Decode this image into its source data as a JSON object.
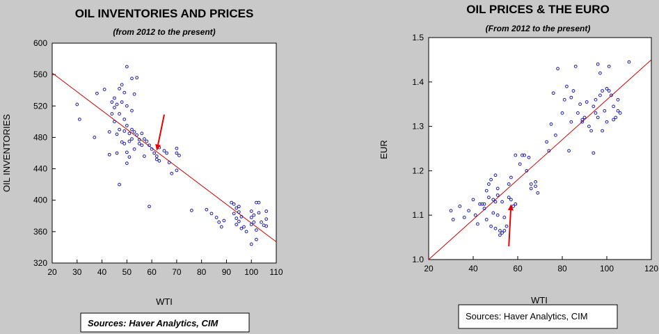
{
  "chart_data": [
    {
      "type": "scatter",
      "title": "OIL INVENTORIES AND PRICES",
      "subtitle": "(from 2012 to the present)",
      "xlabel": "WTI",
      "ylabel": "OIL INVENTORIES",
      "xlim": [
        20,
        110
      ],
      "ylim": [
        320,
        600
      ],
      "xticks": [
        20,
        30,
        40,
        50,
        60,
        70,
        80,
        90,
        100,
        110
      ],
      "yticks": [
        320,
        360,
        400,
        440,
        480,
        520,
        560,
        600
      ],
      "grid": false,
      "source": "Sources:  Haver Analytics, CIM",
      "point_color": "#1a1aa8",
      "line_color": "#cc0000",
      "arrow_color": "#e60000",
      "trendline": [
        [
          20,
          562
        ],
        [
          110,
          347
        ]
      ],
      "arrow": {
        "from": [
          65,
          509
        ],
        "to": [
          62,
          463
        ]
      },
      "points": [
        [
          30,
          522
        ],
        [
          31,
          503
        ],
        [
          37,
          480
        ],
        [
          38,
          536
        ],
        [
          41,
          541
        ],
        [
          43,
          487
        ],
        [
          43,
          458
        ],
        [
          44,
          510
        ],
        [
          44,
          525
        ],
        [
          45,
          530
        ],
        [
          45,
          518
        ],
        [
          45,
          500
        ],
        [
          46,
          522
        ],
        [
          46,
          484
        ],
        [
          46,
          460
        ],
        [
          47,
          542
        ],
        [
          47,
          510
        ],
        [
          47,
          490
        ],
        [
          48,
          547
        ],
        [
          48,
          525
        ],
        [
          48,
          474
        ],
        [
          49,
          537
        ],
        [
          49,
          503
        ],
        [
          49,
          488
        ],
        [
          49,
          472
        ],
        [
          50,
          570
        ],
        [
          50,
          520
        ],
        [
          50,
          495
        ],
        [
          50,
          461
        ],
        [
          50,
          447
        ],
        [
          51,
          485
        ],
        [
          51,
          475
        ],
        [
          51,
          455
        ],
        [
          52,
          555
        ],
        [
          52,
          514
        ],
        [
          52,
          490
        ],
        [
          52,
          478
        ],
        [
          53,
          535
        ],
        [
          53,
          487
        ],
        [
          53,
          465
        ],
        [
          54,
          556
        ],
        [
          54,
          483
        ],
        [
          55,
          477
        ],
        [
          55,
          472
        ],
        [
          56,
          485
        ],
        [
          56,
          470
        ],
        [
          57,
          456
        ],
        [
          57,
          478
        ],
        [
          58,
          475
        ],
        [
          59,
          470
        ],
        [
          59,
          392
        ],
        [
          60,
          465
        ],
        [
          61,
          460
        ],
        [
          62,
          456
        ],
        [
          62,
          452
        ],
        [
          63,
          467
        ],
        [
          63,
          450
        ],
        [
          65,
          463
        ],
        [
          66,
          460
        ],
        [
          67,
          448
        ],
        [
          68,
          434
        ],
        [
          70,
          466
        ],
        [
          70,
          460
        ],
        [
          70,
          438
        ],
        [
          71,
          457
        ],
        [
          47,
          420
        ],
        [
          76,
          387
        ],
        [
          82,
          388
        ],
        [
          84,
          383
        ],
        [
          86,
          378
        ],
        [
          87,
          372
        ],
        [
          88,
          366
        ],
        [
          89,
          374
        ],
        [
          92,
          397
        ],
        [
          93,
          395
        ],
        [
          93,
          383
        ],
        [
          94,
          390
        ],
        [
          94,
          377
        ],
        [
          94,
          369
        ],
        [
          95,
          392
        ],
        [
          95,
          385
        ],
        [
          95,
          373
        ],
        [
          96,
          379
        ],
        [
          96,
          364
        ],
        [
          97,
          366
        ],
        [
          98,
          360
        ],
        [
          100,
          386
        ],
        [
          100,
          378
        ],
        [
          100,
          369
        ],
        [
          100,
          344
        ],
        [
          101,
          381
        ],
        [
          101,
          372
        ],
        [
          102,
          397
        ],
        [
          102,
          362
        ],
        [
          102,
          350
        ],
        [
          103,
          397
        ],
        [
          103,
          384
        ],
        [
          104,
          372
        ],
        [
          105,
          368
        ],
        [
          106,
          386
        ],
        [
          106,
          376
        ],
        [
          106,
          367
        ]
      ]
    },
    {
      "type": "scatter",
      "title": "OIL PRICES & THE EURO",
      "subtitle": "(From 2012 to the present)",
      "xlabel": "WTI",
      "ylabel": "EUR",
      "xlim": [
        20,
        120
      ],
      "ylim": [
        1.0,
        1.5
      ],
      "xticks": [
        20,
        40,
        60,
        80,
        100,
        120
      ],
      "yticks": [
        1.0,
        1.1,
        1.2,
        1.3,
        1.4,
        1.5
      ],
      "grid": false,
      "source": "Sources:  Haver Analytics, CIM",
      "point_color": "#1a1aa8",
      "line_color": "#cc0000",
      "arrow_color": "#e60000",
      "trendline": [
        [
          20,
          1.0
        ],
        [
          120,
          1.45
        ]
      ],
      "arrow": {
        "from": [
          56,
          1.03
        ],
        "to": [
          57,
          1.125
        ]
      },
      "points": [
        [
          30,
          1.11
        ],
        [
          31,
          1.09
        ],
        [
          34,
          1.12
        ],
        [
          36,
          1.095
        ],
        [
          38,
          1.11
        ],
        [
          40,
          1.135
        ],
        [
          41,
          1.1
        ],
        [
          42,
          1.08
        ],
        [
          43,
          1.125
        ],
        [
          44,
          1.125
        ],
        [
          45,
          1.125
        ],
        [
          45,
          1.115
        ],
        [
          46,
          1.09
        ],
        [
          46,
          1.155
        ],
        [
          47,
          1.17
        ],
        [
          47,
          1.14
        ],
        [
          48,
          1.18
        ],
        [
          48,
          1.075
        ],
        [
          49,
          1.135
        ],
        [
          49,
          1.105
        ],
        [
          50,
          1.19
        ],
        [
          50,
          1.13
        ],
        [
          50,
          1.07
        ],
        [
          51,
          1.16
        ],
        [
          51,
          1.145
        ],
        [
          51,
          1.1
        ],
        [
          52,
          1.065
        ],
        [
          52,
          1.055
        ],
        [
          53,
          1.13
        ],
        [
          53,
          1.06
        ],
        [
          54,
          1.095
        ],
        [
          54,
          1.065
        ],
        [
          55,
          1.075
        ],
        [
          56,
          1.14
        ],
        [
          56,
          1.17
        ],
        [
          57,
          1.185
        ],
        [
          57,
          1.135
        ],
        [
          58,
          1.12
        ],
        [
          59,
          1.125
        ],
        [
          59,
          1.235
        ],
        [
          61,
          1.215
        ],
        [
          62,
          1.235
        ],
        [
          63,
          1.235
        ],
        [
          64,
          1.2
        ],
        [
          65,
          1.23
        ],
        [
          66,
          1.17
        ],
        [
          66,
          1.16
        ],
        [
          68,
          1.175
        ],
        [
          68,
          1.165
        ],
        [
          69,
          1.15
        ],
        [
          73,
          1.265
        ],
        [
          74,
          1.245
        ],
        [
          75,
          1.305
        ],
        [
          76,
          1.375
        ],
        [
          77,
          1.28
        ],
        [
          78,
          1.43
        ],
        [
          80,
          1.33
        ],
        [
          81,
          1.36
        ],
        [
          82,
          1.39
        ],
        [
          83,
          1.245
        ],
        [
          84,
          1.365
        ],
        [
          84,
          1.31
        ],
        [
          85,
          1.38
        ],
        [
          86,
          1.435
        ],
        [
          87,
          1.33
        ],
        [
          88,
          1.35
        ],
        [
          89,
          1.315
        ],
        [
          89,
          1.31
        ],
        [
          90,
          1.32
        ],
        [
          91,
          1.355
        ],
        [
          92,
          1.3
        ],
        [
          93,
          1.29
        ],
        [
          94,
          1.345
        ],
        [
          94,
          1.24
        ],
        [
          95,
          1.33
        ],
        [
          95,
          1.36
        ],
        [
          96,
          1.44
        ],
        [
          96,
          1.32
        ],
        [
          97,
          1.42
        ],
        [
          97,
          1.37
        ],
        [
          98,
          1.38
        ],
        [
          98,
          1.29
        ],
        [
          99,
          1.335
        ],
        [
          100,
          1.385
        ],
        [
          100,
          1.31
        ],
        [
          101,
          1.435
        ],
        [
          101,
          1.38
        ],
        [
          102,
          1.37
        ],
        [
          103,
          1.315
        ],
        [
          103,
          1.345
        ],
        [
          104,
          1.32
        ],
        [
          105,
          1.36
        ],
        [
          105,
          1.335
        ],
        [
          106,
          1.33
        ],
        [
          110,
          1.445
        ]
      ]
    }
  ]
}
